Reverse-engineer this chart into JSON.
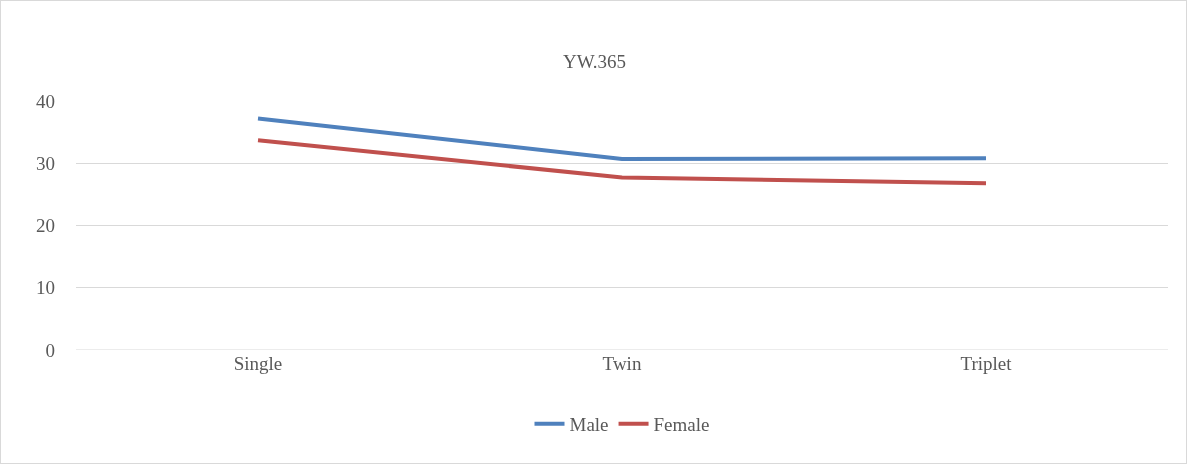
{
  "chart_data": {
    "type": "line",
    "title": "YW.365",
    "categories": [
      "Single",
      "Twin",
      "Triplet"
    ],
    "series": [
      {
        "name": "Male",
        "color": "#4f81bd",
        "values": [
          37.2,
          30.7,
          30.8
        ]
      },
      {
        "name": "Female",
        "color": "#c0504d",
        "values": [
          33.7,
          27.7,
          26.8
        ]
      }
    ],
    "ylim": [
      0,
      40
    ],
    "yticks": [
      0,
      10,
      20,
      30,
      40
    ],
    "grid": "y",
    "legend": "bottom",
    "marker": "none",
    "line_style": "solid"
  }
}
